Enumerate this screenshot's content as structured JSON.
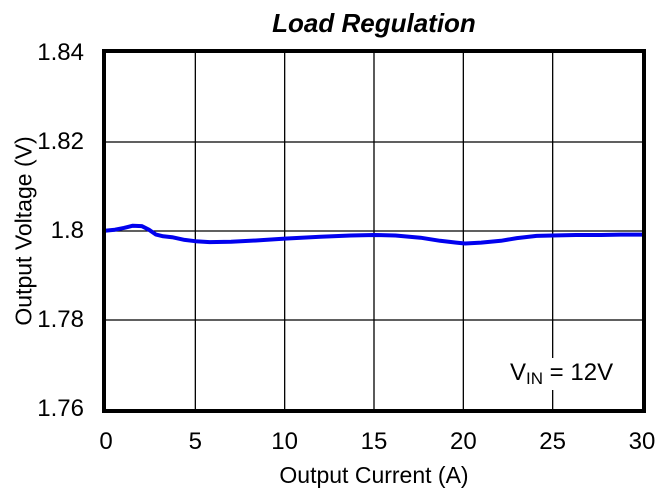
{
  "figure": {
    "title": "Load Regulation",
    "x_axis_title": "Output Current (A)",
    "y_axis_title": "Output Voltage (V)",
    "annotation": {
      "prefix": "V",
      "sub": "IN",
      "suffix": " = 12V"
    }
  },
  "chart_data": {
    "type": "line",
    "title": "Load Regulation",
    "xlabel": "Output Current (A)",
    "ylabel": "Output Voltage (V)",
    "xlim": [
      0,
      30
    ],
    "ylim": [
      1.76,
      1.84
    ],
    "xticks": [
      0,
      5,
      10,
      15,
      20,
      25,
      30
    ],
    "xtick_labels": [
      "0",
      "5",
      "10",
      "15",
      "20",
      "25",
      "30"
    ],
    "yticks": [
      1.76,
      1.78,
      1.8,
      1.82,
      1.84
    ],
    "ytick_labels": [
      "1.76",
      "1.78",
      "1.8",
      "1.82",
      "1.84"
    ],
    "grid": true,
    "legend_position": "none",
    "grid_color": "#000000",
    "line_color": "#0101ee",
    "line_width": 4,
    "annotation": "VIN = 12V",
    "series": [
      {
        "name": "VIN = 12V",
        "x": [
          0,
          0.5,
          1,
          1.5,
          2,
          2.4,
          2.8,
          3.2,
          3.7,
          4.4,
          5,
          5.8,
          7,
          8.6,
          10,
          12,
          13.7,
          15,
          16.2,
          17.6,
          18.7,
          19.6,
          20.1,
          21,
          22.1,
          23,
          24.1,
          25,
          26.3,
          27.7,
          28.8,
          30
        ],
        "y": [
          1.8001,
          1.8003,
          1.8007,
          1.8012,
          1.8011,
          1.8003,
          1.7992,
          1.7988,
          1.7986,
          1.798,
          1.7977,
          1.7975,
          1.7976,
          1.7979,
          1.7983,
          1.7987,
          1.799,
          1.7991,
          1.799,
          1.7985,
          1.7978,
          1.7974,
          1.7972,
          1.7974,
          1.7978,
          1.7984,
          1.7989,
          1.799,
          1.7991,
          1.7991,
          1.7992,
          1.7992
        ]
      }
    ]
  }
}
